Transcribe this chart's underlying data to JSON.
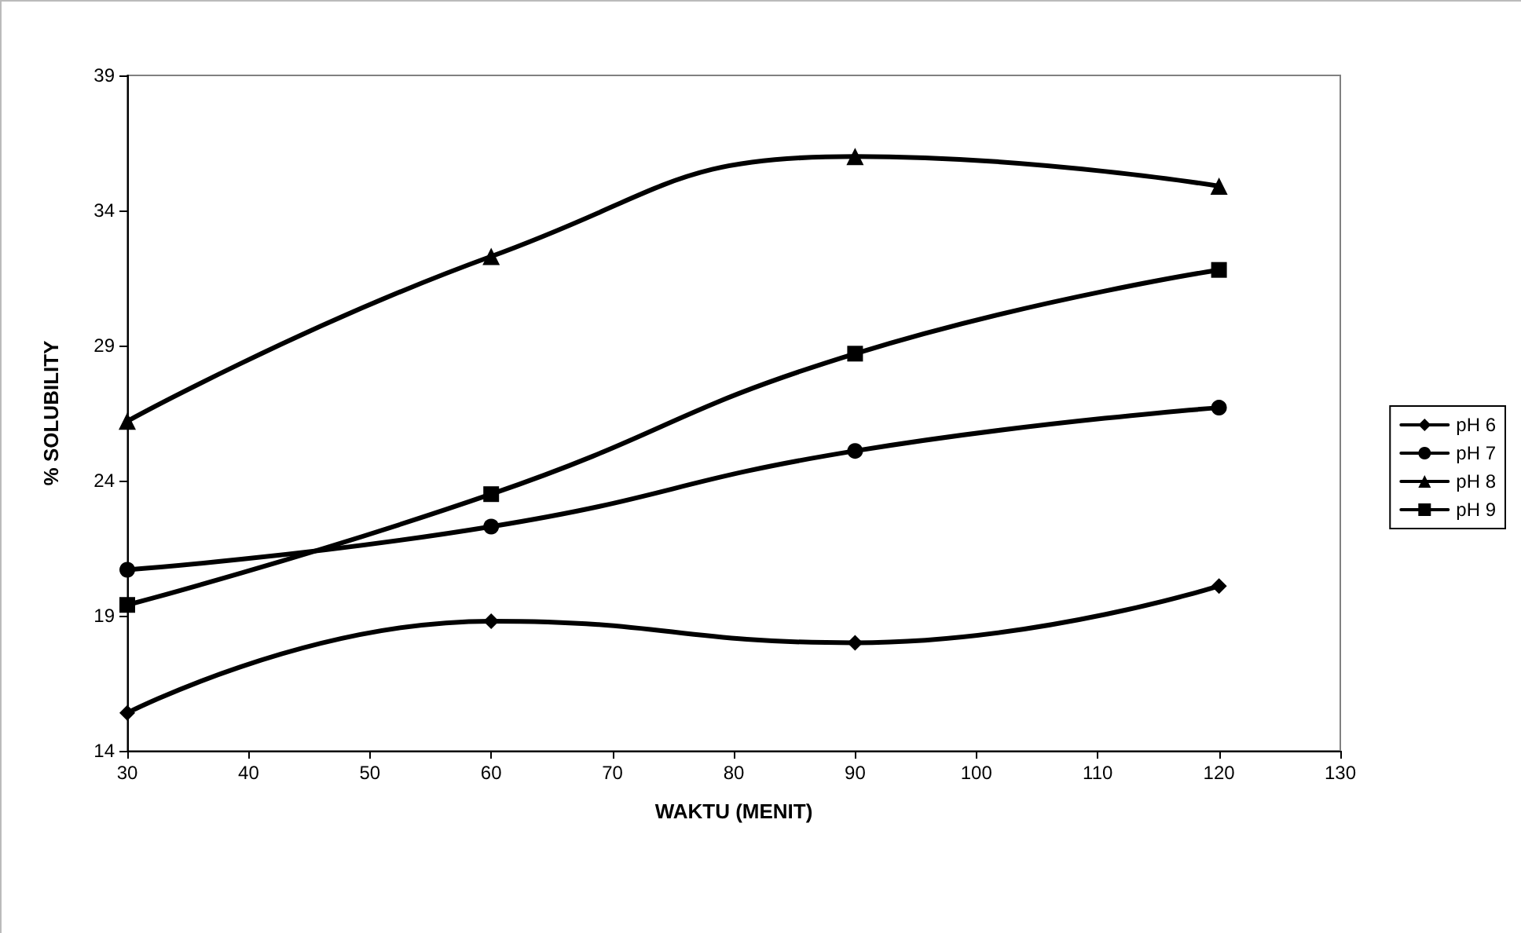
{
  "chart_data": {
    "type": "line",
    "xlabel": "WAKTU (MENIT)",
    "ylabel": "% SOLUBILITY",
    "x": [
      30,
      60,
      90,
      120
    ],
    "series": [
      {
        "name": "pH 6",
        "color": "#000000",
        "marker": "diamond",
        "values": [
          15.4,
          18.8,
          18.0,
          20.1
        ]
      },
      {
        "name": "pH 7",
        "color": "#000000",
        "marker": "circle",
        "values": [
          20.7,
          22.3,
          25.1,
          26.7
        ]
      },
      {
        "name": "pH 8",
        "color": "#000000",
        "marker": "triangle",
        "values": [
          26.2,
          32.3,
          36.0,
          34.9
        ]
      },
      {
        "name": "pH 9",
        "color": "#000000",
        "marker": "square",
        "values": [
          19.4,
          23.5,
          28.7,
          31.8
        ]
      }
    ],
    "xlim": [
      30,
      130
    ],
    "xticks": [
      30,
      40,
      50,
      60,
      70,
      80,
      90,
      100,
      110,
      120,
      130
    ],
    "ylim": [
      14,
      39
    ],
    "yticks": [
      14,
      19,
      24,
      29,
      34,
      39
    ],
    "grid": false,
    "legend": "right",
    "line_style": "solid"
  }
}
